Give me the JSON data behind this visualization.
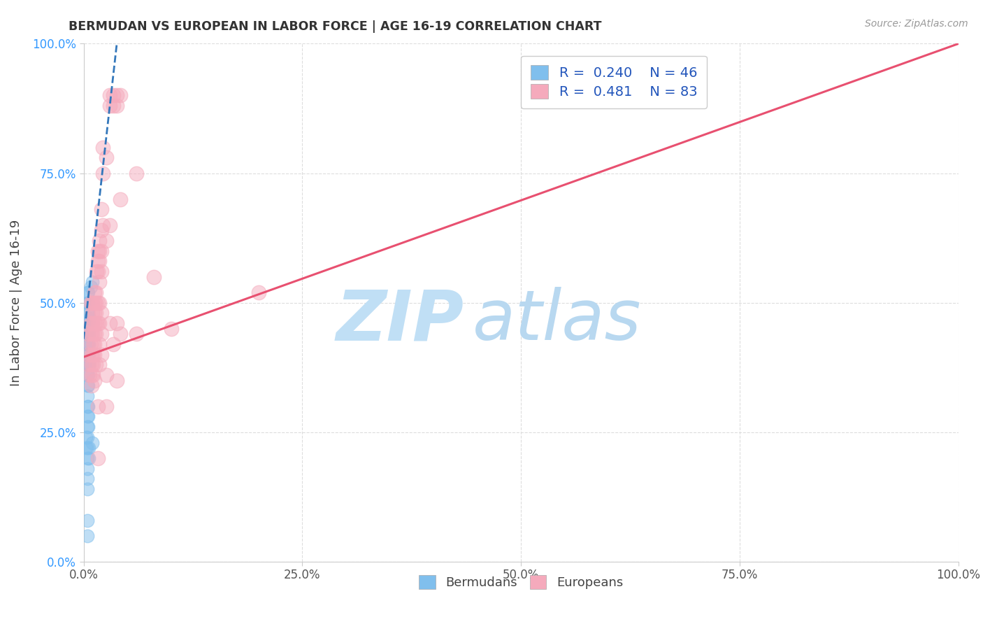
{
  "title": "BERMUDAN VS EUROPEAN IN LABOR FORCE | AGE 16-19 CORRELATION CHART",
  "source": "Source: ZipAtlas.com",
  "ylabel": "In Labor Force | Age 16-19",
  "xlim": [
    0.0,
    1.0
  ],
  "ylim": [
    0.0,
    1.0
  ],
  "xticks": [
    0.0,
    0.25,
    0.5,
    0.75,
    1.0
  ],
  "yticks": [
    0.0,
    0.25,
    0.5,
    0.75,
    1.0
  ],
  "legend_r_blue": "0.240",
  "legend_n_blue": "46",
  "legend_r_pink": "0.481",
  "legend_n_pink": "83",
  "blue_color": "#80BFED",
  "pink_color": "#F5AABC",
  "trendline_blue_color": "#3377BB",
  "trendline_pink_color": "#E85070",
  "watermark_color_zip": "#C0DFF5",
  "watermark_color_atlas": "#B8D8F0",
  "background_color": "#FFFFFF",
  "grid_color": "#DDDDDD",
  "blue_scatter": [
    [
      0.004,
      0.44
    ],
    [
      0.004,
      0.42
    ],
    [
      0.004,
      0.4
    ],
    [
      0.004,
      0.38
    ],
    [
      0.004,
      0.36
    ],
    [
      0.004,
      0.34
    ],
    [
      0.004,
      0.32
    ],
    [
      0.004,
      0.3
    ],
    [
      0.004,
      0.28
    ],
    [
      0.004,
      0.26
    ],
    [
      0.004,
      0.24
    ],
    [
      0.004,
      0.22
    ],
    [
      0.004,
      0.5
    ],
    [
      0.004,
      0.48
    ],
    [
      0.004,
      0.46
    ],
    [
      0.004,
      0.52
    ],
    [
      0.004,
      0.2
    ],
    [
      0.004,
      0.18
    ],
    [
      0.004,
      0.16
    ],
    [
      0.004,
      0.14
    ],
    [
      0.005,
      0.44
    ],
    [
      0.005,
      0.42
    ],
    [
      0.005,
      0.4
    ],
    [
      0.005,
      0.38
    ],
    [
      0.005,
      0.36
    ],
    [
      0.005,
      0.34
    ],
    [
      0.005,
      0.46
    ],
    [
      0.005,
      0.48
    ],
    [
      0.005,
      0.5
    ],
    [
      0.005,
      0.52
    ],
    [
      0.005,
      0.3
    ],
    [
      0.005,
      0.28
    ],
    [
      0.005,
      0.26
    ],
    [
      0.006,
      0.44
    ],
    [
      0.006,
      0.42
    ],
    [
      0.006,
      0.38
    ],
    [
      0.006,
      0.22
    ],
    [
      0.006,
      0.2
    ],
    [
      0.007,
      0.47
    ],
    [
      0.008,
      0.53
    ],
    [
      0.01,
      0.23
    ],
    [
      0.01,
      0.54
    ],
    [
      0.004,
      0.08
    ],
    [
      0.004,
      0.05
    ],
    [
      0.003,
      0.24
    ],
    [
      0.003,
      0.22
    ]
  ],
  "pink_scatter": [
    [
      0.004,
      0.44
    ],
    [
      0.005,
      0.4
    ],
    [
      0.006,
      0.38
    ],
    [
      0.007,
      0.36
    ],
    [
      0.008,
      0.5
    ],
    [
      0.008,
      0.46
    ],
    [
      0.008,
      0.44
    ],
    [
      0.008,
      0.42
    ],
    [
      0.009,
      0.4
    ],
    [
      0.009,
      0.38
    ],
    [
      0.009,
      0.36
    ],
    [
      0.009,
      0.34
    ],
    [
      0.01,
      0.5
    ],
    [
      0.01,
      0.48
    ],
    [
      0.01,
      0.46
    ],
    [
      0.01,
      0.44
    ],
    [
      0.011,
      0.42
    ],
    [
      0.011,
      0.4
    ],
    [
      0.011,
      0.38
    ],
    [
      0.011,
      0.36
    ],
    [
      0.012,
      0.52
    ],
    [
      0.012,
      0.5
    ],
    [
      0.012,
      0.48
    ],
    [
      0.012,
      0.46
    ],
    [
      0.012,
      0.44
    ],
    [
      0.012,
      0.42
    ],
    [
      0.012,
      0.4
    ],
    [
      0.012,
      0.35
    ],
    [
      0.014,
      0.52
    ],
    [
      0.014,
      0.5
    ],
    [
      0.014,
      0.48
    ],
    [
      0.014,
      0.46
    ],
    [
      0.014,
      0.44
    ],
    [
      0.014,
      0.38
    ],
    [
      0.015,
      0.56
    ],
    [
      0.016,
      0.6
    ],
    [
      0.016,
      0.58
    ],
    [
      0.016,
      0.56
    ],
    [
      0.016,
      0.5
    ],
    [
      0.016,
      0.46
    ],
    [
      0.016,
      0.3
    ],
    [
      0.016,
      0.2
    ],
    [
      0.018,
      0.62
    ],
    [
      0.018,
      0.6
    ],
    [
      0.018,
      0.58
    ],
    [
      0.018,
      0.54
    ],
    [
      0.018,
      0.5
    ],
    [
      0.018,
      0.46
    ],
    [
      0.018,
      0.42
    ],
    [
      0.018,
      0.38
    ],
    [
      0.02,
      0.68
    ],
    [
      0.02,
      0.64
    ],
    [
      0.02,
      0.6
    ],
    [
      0.02,
      0.56
    ],
    [
      0.02,
      0.48
    ],
    [
      0.02,
      0.44
    ],
    [
      0.02,
      0.4
    ],
    [
      0.022,
      0.8
    ],
    [
      0.022,
      0.75
    ],
    [
      0.022,
      0.65
    ],
    [
      0.026,
      0.78
    ],
    [
      0.026,
      0.62
    ],
    [
      0.026,
      0.36
    ],
    [
      0.026,
      0.3
    ],
    [
      0.03,
      0.9
    ],
    [
      0.03,
      0.88
    ],
    [
      0.03,
      0.65
    ],
    [
      0.03,
      0.46
    ],
    [
      0.034,
      0.9
    ],
    [
      0.034,
      0.88
    ],
    [
      0.034,
      0.42
    ],
    [
      0.038,
      0.9
    ],
    [
      0.038,
      0.88
    ],
    [
      0.038,
      0.46
    ],
    [
      0.038,
      0.35
    ],
    [
      0.042,
      0.9
    ],
    [
      0.042,
      0.7
    ],
    [
      0.042,
      0.44
    ],
    [
      0.06,
      0.75
    ],
    [
      0.06,
      0.44
    ],
    [
      0.08,
      0.55
    ],
    [
      0.1,
      0.45
    ],
    [
      0.2,
      0.52
    ]
  ],
  "trendline_pink_x0": 0.0,
  "trendline_pink_y0": 0.395,
  "trendline_pink_x1": 1.0,
  "trendline_pink_y1": 1.0,
  "trendline_blue_x0": 0.0,
  "trendline_blue_y0": 0.43,
  "trendline_blue_x1": 0.012,
  "trendline_blue_y1": 0.61
}
